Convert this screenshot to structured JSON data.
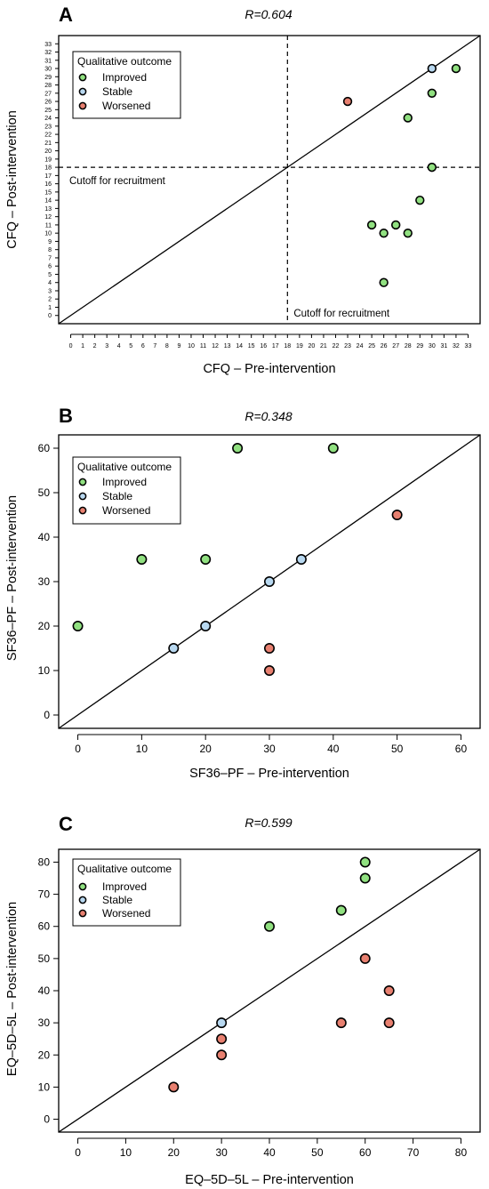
{
  "legend": {
    "title": "Qualitative outcome",
    "items": [
      {
        "label": "Improved",
        "color": "#90e080"
      },
      {
        "label": "Stable",
        "color": "#b8d8f0"
      },
      {
        "label": "Worsened",
        "color": "#e88070"
      }
    ]
  },
  "chart_data": [
    {
      "type": "scatter",
      "panel": "A",
      "title": "R=0.604",
      "xlabel": "CFQ – Pre-intervention",
      "ylabel": "CFQ – Post-intervention",
      "xlim": [
        -1,
        34
      ],
      "ylim": [
        -1,
        34
      ],
      "x_ticks": [
        0,
        1,
        2,
        3,
        4,
        5,
        6,
        7,
        8,
        9,
        10,
        11,
        12,
        13,
        14,
        15,
        16,
        17,
        18,
        19,
        20,
        21,
        22,
        23,
        24,
        25,
        26,
        27,
        28,
        29,
        30,
        31,
        32,
        33
      ],
      "y_ticks": [
        0,
        1,
        2,
        3,
        4,
        5,
        6,
        7,
        8,
        9,
        10,
        11,
        12,
        13,
        14,
        15,
        16,
        17,
        18,
        19,
        20,
        21,
        22,
        23,
        24,
        25,
        26,
        27,
        28,
        29,
        30,
        31,
        32,
        33
      ],
      "identity_line": true,
      "cutoff_lines": {
        "x": 18,
        "y": 18,
        "x_label": "Cutoff for recruitment",
        "y_label": "Cutoff for recruitment"
      },
      "points": [
        {
          "x": 32,
          "y": 30,
          "outcome": "Improved"
        },
        {
          "x": 30,
          "y": 27,
          "outcome": "Improved"
        },
        {
          "x": 28,
          "y": 24,
          "outcome": "Improved"
        },
        {
          "x": 30,
          "y": 18,
          "outcome": "Improved"
        },
        {
          "x": 29,
          "y": 14,
          "outcome": "Improved"
        },
        {
          "x": 25,
          "y": 11,
          "outcome": "Improved"
        },
        {
          "x": 27,
          "y": 11,
          "outcome": "Improved"
        },
        {
          "x": 26,
          "y": 10,
          "outcome": "Improved"
        },
        {
          "x": 28,
          "y": 10,
          "outcome": "Improved"
        },
        {
          "x": 26,
          "y": 4,
          "outcome": "Improved"
        },
        {
          "x": 30,
          "y": 30,
          "outcome": "Stable"
        },
        {
          "x": 23,
          "y": 26,
          "outcome": "Worsened"
        }
      ]
    },
    {
      "type": "scatter",
      "panel": "B",
      "title": "R=0.348",
      "xlabel": "SF36–PF – Pre-intervention",
      "ylabel": "SF36–PF – Post-intervention",
      "xlim": [
        -3,
        63
      ],
      "ylim": [
        -3,
        63
      ],
      "x_ticks": [
        0,
        10,
        20,
        30,
        40,
        50,
        60
      ],
      "y_ticks": [
        0,
        10,
        20,
        30,
        40,
        50,
        60
      ],
      "identity_line": true,
      "points": [
        {
          "x": 25,
          "y": 60,
          "outcome": "Improved"
        },
        {
          "x": 40,
          "y": 60,
          "outcome": "Improved"
        },
        {
          "x": 10,
          "y": 35,
          "outcome": "Improved"
        },
        {
          "x": 20,
          "y": 35,
          "outcome": "Improved"
        },
        {
          "x": 0,
          "y": 20,
          "outcome": "Improved"
        },
        {
          "x": 35,
          "y": 35,
          "outcome": "Stable"
        },
        {
          "x": 30,
          "y": 30,
          "outcome": "Stable"
        },
        {
          "x": 20,
          "y": 20,
          "outcome": "Stable"
        },
        {
          "x": 15,
          "y": 15,
          "outcome": "Stable"
        },
        {
          "x": 50,
          "y": 45,
          "outcome": "Worsened"
        },
        {
          "x": 30,
          "y": 15,
          "outcome": "Worsened"
        },
        {
          "x": 30,
          "y": 10,
          "outcome": "Worsened"
        }
      ]
    },
    {
      "type": "scatter",
      "panel": "C",
      "title": "R=0.599",
      "xlabel": "EQ–5D–5L – Pre-intervention",
      "ylabel": "EQ–5D–5L – Post-intervention",
      "xlim": [
        -4,
        84
      ],
      "ylim": [
        -4,
        84
      ],
      "x_ticks": [
        0,
        10,
        20,
        30,
        40,
        50,
        60,
        70,
        80
      ],
      "y_ticks": [
        0,
        10,
        20,
        30,
        40,
        50,
        60,
        70,
        80
      ],
      "identity_line": true,
      "points": [
        {
          "x": 60,
          "y": 80,
          "outcome": "Improved"
        },
        {
          "x": 60,
          "y": 75,
          "outcome": "Improved"
        },
        {
          "x": 55,
          "y": 65,
          "outcome": "Improved"
        },
        {
          "x": 40,
          "y": 60,
          "outcome": "Improved"
        },
        {
          "x": 30,
          "y": 30,
          "outcome": "Stable"
        },
        {
          "x": 60,
          "y": 50,
          "outcome": "Worsened"
        },
        {
          "x": 65,
          "y": 40,
          "outcome": "Worsened"
        },
        {
          "x": 55,
          "y": 30,
          "outcome": "Worsened"
        },
        {
          "x": 65,
          "y": 30,
          "outcome": "Worsened"
        },
        {
          "x": 30,
          "y": 25,
          "outcome": "Worsened"
        },
        {
          "x": 30,
          "y": 20,
          "outcome": "Worsened"
        },
        {
          "x": 20,
          "y": 10,
          "outcome": "Worsened"
        }
      ]
    }
  ]
}
